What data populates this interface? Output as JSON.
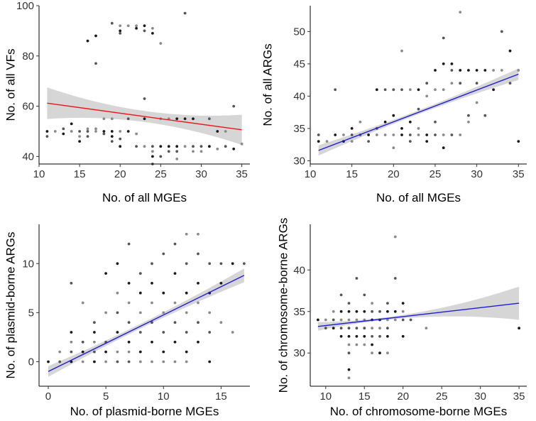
{
  "chart_data": [
    {
      "id": "p1",
      "type": "scatter",
      "xlabel": "No. of all MGEs",
      "ylabel": "No. of all VFs",
      "xlim": [
        10,
        36
      ],
      "ylim": [
        37,
        100
      ],
      "xticks": [
        10,
        15,
        20,
        25,
        30,
        35
      ],
      "yticks": [
        40,
        60,
        80,
        100
      ],
      "grid": false,
      "fit": {
        "x": [
          11,
          35
        ],
        "y": [
          61.2,
          50.6
        ],
        "ci_half_start": 6.3,
        "ci_half_mid": 2.2,
        "ci_half_end": 6.0,
        "color": "#e8191c"
      },
      "points": [
        [
          11,
          50
        ],
        [
          11,
          48
        ],
        [
          12,
          50
        ],
        [
          13,
          49
        ],
        [
          13,
          51
        ],
        [
          14,
          50
        ],
        [
          14,
          53
        ],
        [
          15,
          50
        ],
        [
          15,
          48
        ],
        [
          15,
          46
        ],
        [
          16,
          50
        ],
        [
          16,
          51
        ],
        [
          16,
          86
        ],
        [
          16,
          48
        ],
        [
          17,
          50
        ],
        [
          17,
          88
        ],
        [
          17,
          77
        ],
        [
          17,
          51
        ],
        [
          18,
          50
        ],
        [
          18,
          49
        ],
        [
          18,
          55
        ],
        [
          19,
          50
        ],
        [
          19,
          93
        ],
        [
          19,
          55
        ],
        [
          19,
          48
        ],
        [
          19,
          46
        ],
        [
          20,
          92
        ],
        [
          20,
          90
        ],
        [
          20,
          89
        ],
        [
          20,
          50
        ],
        [
          20,
          44
        ],
        [
          20,
          47
        ],
        [
          21,
          92
        ],
        [
          21,
          50
        ],
        [
          21,
          55
        ],
        [
          22,
          92
        ],
        [
          22,
          91
        ],
        [
          22,
          44
        ],
        [
          22,
          49
        ],
        [
          23,
          92
        ],
        [
          23,
          90
        ],
        [
          23,
          44
        ],
        [
          23,
          55
        ],
        [
          23,
          63
        ],
        [
          24,
          91
        ],
        [
          24,
          89
        ],
        [
          24,
          44
        ],
        [
          24,
          42
        ],
        [
          24,
          40
        ],
        [
          24,
          37
        ],
        [
          25,
          85
        ],
        [
          25,
          44
        ],
        [
          25,
          40
        ],
        [
          25,
          55
        ],
        [
          26,
          44
        ],
        [
          26,
          42
        ],
        [
          26,
          55
        ],
        [
          27,
          44
        ],
        [
          27,
          42
        ],
        [
          27,
          39
        ],
        [
          27,
          55
        ],
        [
          28,
          97
        ],
        [
          28,
          44
        ],
        [
          28,
          55
        ],
        [
          29,
          44
        ],
        [
          29,
          42
        ],
        [
          29,
          55
        ],
        [
          30,
          44
        ],
        [
          30,
          42
        ],
        [
          31,
          44
        ],
        [
          31,
          55
        ],
        [
          32,
          43
        ],
        [
          32,
          50
        ],
        [
          33,
          44
        ],
        [
          33,
          50
        ],
        [
          34,
          43
        ],
        [
          34,
          60
        ],
        [
          35,
          45
        ]
      ]
    },
    {
      "id": "p2",
      "type": "scatter",
      "xlabel": "No. of all MGEs",
      "ylabel": "No. of all ARGs",
      "xlim": [
        10,
        36
      ],
      "ylim": [
        29.5,
        54
      ],
      "xticks": [
        10,
        15,
        20,
        25,
        30,
        35
      ],
      "yticks": [
        30,
        35,
        40,
        45,
        50
      ],
      "grid": false,
      "fit": {
        "x": [
          11,
          35
        ],
        "y": [
          31.6,
          43.4
        ],
        "ci_half_start": 0.8,
        "ci_half_mid": 0.3,
        "ci_half_end": 0.9,
        "color": "#1c1ce0"
      },
      "points": [
        [
          11,
          33
        ],
        [
          11,
          34
        ],
        [
          12,
          33
        ],
        [
          13,
          34
        ],
        [
          13,
          41
        ],
        [
          14,
          34
        ],
        [
          14,
          33
        ],
        [
          15,
          34
        ],
        [
          15,
          33
        ],
        [
          15,
          35
        ],
        [
          16,
          34
        ],
        [
          16,
          36
        ],
        [
          17,
          34
        ],
        [
          17,
          33
        ],
        [
          18,
          34
        ],
        [
          18,
          41
        ],
        [
          18,
          35
        ],
        [
          19,
          34
        ],
        [
          19,
          36
        ],
        [
          19,
          41
        ],
        [
          20,
          34
        ],
        [
          20,
          37
        ],
        [
          20,
          41
        ],
        [
          20,
          32
        ],
        [
          21,
          34
        ],
        [
          21,
          41
        ],
        [
          21,
          47
        ],
        [
          21,
          35
        ],
        [
          22,
          34
        ],
        [
          22,
          41
        ],
        [
          22,
          36
        ],
        [
          22,
          33
        ],
        [
          23,
          34
        ],
        [
          23,
          41
        ],
        [
          23,
          38
        ],
        [
          23,
          35
        ],
        [
          24,
          34
        ],
        [
          24,
          42
        ],
        [
          24,
          40
        ],
        [
          24,
          33
        ],
        [
          25,
          34
        ],
        [
          25,
          41
        ],
        [
          25,
          44
        ],
        [
          25,
          36
        ],
        [
          26,
          34
        ],
        [
          26,
          45
        ],
        [
          26,
          49
        ],
        [
          26,
          41
        ],
        [
          26,
          32
        ],
        [
          27,
          34
        ],
        [
          27,
          42
        ],
        [
          27,
          45
        ],
        [
          27,
          44
        ],
        [
          28,
          53
        ],
        [
          28,
          44
        ],
        [
          28,
          42
        ],
        [
          28,
          34
        ],
        [
          29,
          44
        ],
        [
          29,
          37
        ],
        [
          29,
          36
        ],
        [
          30,
          44
        ],
        [
          30,
          42
        ],
        [
          30,
          39
        ],
        [
          31,
          44
        ],
        [
          31,
          37
        ],
        [
          32,
          44
        ],
        [
          32,
          41
        ],
        [
          33,
          50
        ],
        [
          33,
          44
        ],
        [
          34,
          47
        ],
        [
          34,
          42
        ],
        [
          35,
          44
        ],
        [
          35,
          33
        ]
      ]
    },
    {
      "id": "p3",
      "type": "scatter",
      "xlabel": "No. of plasmid-borne MGEs",
      "ylabel": "No. of plasmid-borne ARGs",
      "xlim": [
        -0.8,
        17.5
      ],
      "ylim": [
        -2.5,
        14
      ],
      "xticks": [
        0,
        5,
        10,
        15
      ],
      "yticks": [
        0,
        5,
        10
      ],
      "grid": false,
      "fit": {
        "x": [
          0,
          17
        ],
        "y": [
          -1.0,
          8.8
        ],
        "ci_half_start": 0.55,
        "ci_half_mid": 0.25,
        "ci_half_end": 0.7,
        "color": "#1c1ce0"
      },
      "points": [
        [
          0,
          0
        ],
        [
          1,
          0
        ],
        [
          1,
          1
        ],
        [
          2,
          0
        ],
        [
          2,
          1
        ],
        [
          2,
          2
        ],
        [
          2,
          3
        ],
        [
          2,
          8
        ],
        [
          3,
          0
        ],
        [
          3,
          1
        ],
        [
          3,
          2
        ],
        [
          3,
          6
        ],
        [
          4,
          0
        ],
        [
          4,
          1
        ],
        [
          4,
          2
        ],
        [
          4,
          3
        ],
        [
          4,
          4
        ],
        [
          5,
          0
        ],
        [
          5,
          1
        ],
        [
          5,
          2
        ],
        [
          5,
          5
        ],
        [
          5,
          9
        ],
        [
          6,
          0
        ],
        [
          6,
          1
        ],
        [
          6,
          3
        ],
        [
          6,
          5
        ],
        [
          6,
          7
        ],
        [
          6,
          10
        ],
        [
          7,
          0
        ],
        [
          7,
          1
        ],
        [
          7,
          2
        ],
        [
          7,
          4
        ],
        [
          7,
          6
        ],
        [
          7,
          8
        ],
        [
          7,
          12
        ],
        [
          8,
          0
        ],
        [
          8,
          1
        ],
        [
          8,
          3
        ],
        [
          8,
          5
        ],
        [
          8,
          7
        ],
        [
          8,
          9
        ],
        [
          9,
          0
        ],
        [
          9,
          2
        ],
        [
          9,
          4
        ],
        [
          9,
          6
        ],
        [
          9,
          8
        ],
        [
          9,
          10
        ],
        [
          10,
          0
        ],
        [
          10,
          1
        ],
        [
          10,
          3
        ],
        [
          10,
          5
        ],
        [
          10,
          7
        ],
        [
          10,
          11
        ],
        [
          11,
          0
        ],
        [
          11,
          2
        ],
        [
          11,
          4
        ],
        [
          11,
          6
        ],
        [
          11,
          9
        ],
        [
          11,
          12
        ],
        [
          12,
          0
        ],
        [
          12,
          1
        ],
        [
          12,
          3
        ],
        [
          12,
          5
        ],
        [
          12,
          7
        ],
        [
          12,
          10
        ],
        [
          12,
          13
        ],
        [
          13,
          2
        ],
        [
          13,
          4
        ],
        [
          13,
          6
        ],
        [
          13,
          8
        ],
        [
          13,
          11
        ],
        [
          13,
          13
        ],
        [
          14,
          0
        ],
        [
          14,
          3
        ],
        [
          14,
          5
        ],
        [
          14,
          7
        ],
        [
          14,
          10
        ],
        [
          15,
          4
        ],
        [
          15,
          8
        ],
        [
          15,
          10
        ],
        [
          16,
          3
        ],
        [
          16,
          10
        ],
        [
          17,
          10
        ]
      ]
    },
    {
      "id": "p4",
      "type": "scatter",
      "xlabel": "No. of chromosome-borne MGEs",
      "ylabel": "No. of chromosome-borne ARGs",
      "xlim": [
        8,
        36
      ],
      "ylim": [
        26,
        45.5
      ],
      "xticks": [
        10,
        15,
        20,
        25,
        30,
        35
      ],
      "yticks": [
        30,
        35,
        40
      ],
      "grid": false,
      "fit": {
        "x": [
          9,
          35
        ],
        "y": [
          33.2,
          36.0
        ],
        "ci_half_start": 0.5,
        "ci_half_mid": 0.3,
        "ci_half_end": 2.0,
        "color": "#1c1ce0"
      },
      "points": [
        [
          9,
          34
        ],
        [
          10,
          33
        ],
        [
          10,
          34
        ],
        [
          11,
          33
        ],
        [
          11,
          34
        ],
        [
          11,
          35
        ],
        [
          12,
          32
        ],
        [
          12,
          33
        ],
        [
          12,
          34
        ],
        [
          12,
          35
        ],
        [
          12,
          37
        ],
        [
          13,
          27
        ],
        [
          13,
          28
        ],
        [
          13,
          30
        ],
        [
          13,
          31
        ],
        [
          13,
          32
        ],
        [
          13,
          33
        ],
        [
          13,
          34
        ],
        [
          13,
          35
        ],
        [
          13,
          36
        ],
        [
          14,
          31
        ],
        [
          14,
          32
        ],
        [
          14,
          33
        ],
        [
          14,
          34
        ],
        [
          14,
          35
        ],
        [
          14,
          39
        ],
        [
          15,
          31
        ],
        [
          15,
          32
        ],
        [
          15,
          33
        ],
        [
          15,
          34
        ],
        [
          15,
          35
        ],
        [
          15,
          37
        ],
        [
          16,
          30
        ],
        [
          16,
          31
        ],
        [
          16,
          32
        ],
        [
          16,
          33
        ],
        [
          16,
          34
        ],
        [
          16,
          35
        ],
        [
          16,
          36
        ],
        [
          17,
          30
        ],
        [
          17,
          32
        ],
        [
          17,
          33
        ],
        [
          17,
          34
        ],
        [
          17,
          35
        ],
        [
          18,
          30
        ],
        [
          18,
          32
        ],
        [
          18,
          33
        ],
        [
          18,
          34
        ],
        [
          18,
          35
        ],
        [
          18,
          36
        ],
        [
          19,
          34
        ],
        [
          19,
          35
        ],
        [
          19,
          39
        ],
        [
          19,
          44
        ],
        [
          20,
          32
        ],
        [
          20,
          34
        ],
        [
          20,
          35
        ],
        [
          20,
          36
        ],
        [
          21,
          34
        ],
        [
          23,
          33
        ],
        [
          35,
          33
        ]
      ]
    }
  ]
}
